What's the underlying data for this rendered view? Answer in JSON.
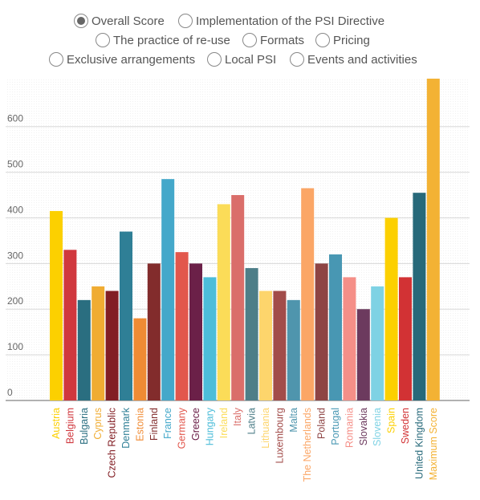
{
  "radio_options": [
    {
      "label": "Overall Score",
      "selected": true
    },
    {
      "label": "Implementation of the PSI Directive",
      "selected": false
    },
    {
      "label": "The practice of re-use",
      "selected": false
    },
    {
      "label": "Formats",
      "selected": false
    },
    {
      "label": "Pricing",
      "selected": false
    },
    {
      "label": "Exclusive arrangements",
      "selected": false
    },
    {
      "label": "Local PSI",
      "selected": false
    },
    {
      "label": "Events and activities",
      "selected": false
    }
  ],
  "chart_data": {
    "type": "bar",
    "title": "",
    "xlabel": "",
    "ylabel": "",
    "ylim": [
      0,
      705
    ],
    "yticks": [
      0,
      100,
      200,
      300,
      400,
      500,
      600
    ],
    "grid": true,
    "categories": [
      "Austria",
      "Belgium",
      "Bulgaria",
      "Cyprus",
      "Czech Republic",
      "Denmark",
      "Estonia",
      "Finland",
      "France",
      "Germany",
      "Greece",
      "Hungary",
      "Ireland",
      "Italy",
      "Latvia",
      "Lithuania",
      "Luxembourg",
      "Malta",
      "The Netherlands",
      "Poland",
      "Portugal",
      "Romania",
      "Slovakia",
      "Slovenia",
      "Spain",
      "Sweden",
      "United Kingdom",
      "Maximum Score"
    ],
    "values": [
      415,
      330,
      220,
      250,
      240,
      370,
      180,
      300,
      485,
      325,
      300,
      270,
      430,
      450,
      290,
      240,
      240,
      220,
      465,
      300,
      320,
      270,
      200,
      250,
      400,
      270,
      455,
      705
    ],
    "colors": [
      "#FCD000",
      "#D0383E",
      "#2A6E80",
      "#F0AC32",
      "#821E24",
      "#2F7F96",
      "#F08B34",
      "#822C2C",
      "#44A8CA",
      "#E2574C",
      "#6B2048",
      "#4DBDD9",
      "#FBDC58",
      "#DA6E6A",
      "#4D7E88",
      "#FDD56C",
      "#A24C4A",
      "#4F95AD",
      "#FBA666",
      "#8E4444",
      "#4897B3",
      "#F58F88",
      "#6C3A5E",
      "#7ED2E4",
      "#FCD000",
      "#D23234",
      "#27697A",
      "#F3B234"
    ]
  }
}
